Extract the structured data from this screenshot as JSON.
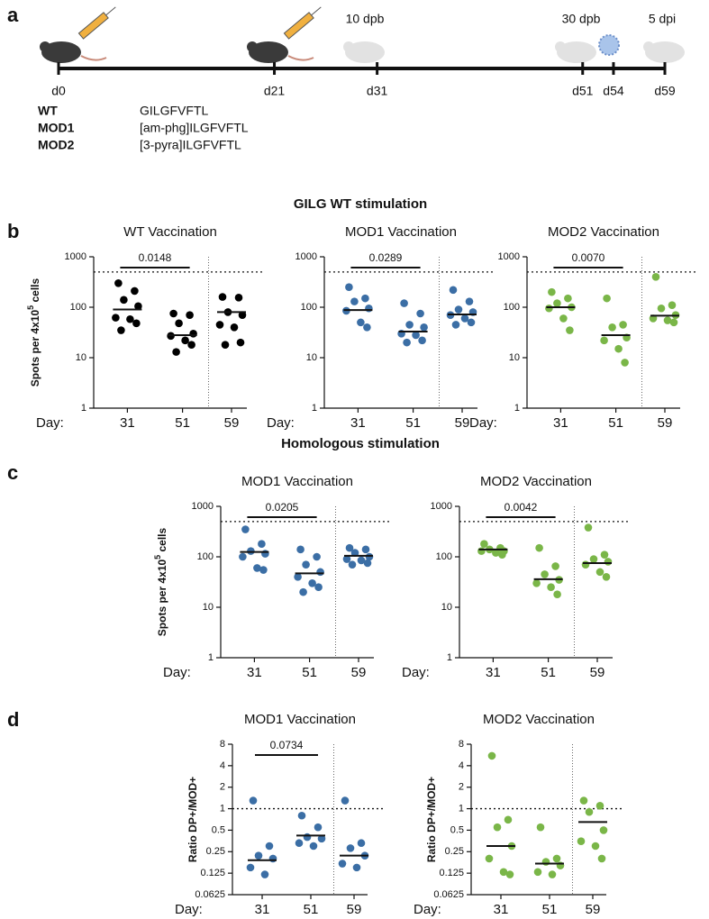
{
  "panel_labels": [
    "a",
    "b",
    "c",
    "d"
  ],
  "timeline": {
    "ticks": [
      {
        "value": 0,
        "label": "d0"
      },
      {
        "value": 21,
        "label": "d21"
      },
      {
        "value": 31,
        "label": "d31"
      },
      {
        "value": 51,
        "label": "d51"
      },
      {
        "value": 54,
        "label": "d54"
      },
      {
        "value": 59,
        "label": "d59"
      }
    ],
    "annotations": [
      "10 dpb",
      "30 dpb",
      "5 dpi"
    ]
  },
  "peptides": [
    {
      "name": "WT",
      "sequence": "GILGFVFTL"
    },
    {
      "name": "MOD1",
      "sequence": "[am-phg]ILGFVFTL"
    },
    {
      "name": "MOD2",
      "sequence": "[3-pyra]ILGFVFTL"
    }
  ],
  "section_titles": [
    "GILG WT stimulation",
    "Homologous stimulation"
  ],
  "chart_data": [
    {
      "type": "strip",
      "title": "WT Vaccination",
      "ylabel": {
        "pre": "Spots per 4x10",
        "sup": "5",
        "post": " cells"
      },
      "xlabel": "Day:",
      "categories": [
        "31",
        "51",
        "59"
      ],
      "color": "#000000",
      "values": [
        [
          300,
          210,
          140,
          105,
          62,
          58,
          48,
          35
        ],
        [
          75,
          70,
          48,
          30,
          27,
          22,
          18,
          13
        ],
        [
          160,
          155,
          80,
          70,
          45,
          40,
          20,
          18
        ]
      ],
      "medians": [
        90,
        28,
        80
      ],
      "threshold": 500,
      "p_value": 0.0148,
      "ylim": [
        1,
        1000
      ],
      "yticks": [
        1,
        10,
        100,
        1000
      ],
      "log_base": 10
    },
    {
      "type": "strip",
      "title": "MOD1 Vaccination",
      "xlabel": "Day:",
      "categories": [
        "31",
        "51",
        "59"
      ],
      "color": "#3b6ea5",
      "values": [
        [
          250,
          150,
          130,
          95,
          85,
          50,
          40
        ],
        [
          120,
          75,
          45,
          40,
          30,
          28,
          22,
          20
        ],
        [
          220,
          130,
          90,
          80,
          70,
          60,
          50,
          45
        ]
      ],
      "medians": [
        88,
        33,
        72
      ],
      "threshold": 500,
      "p_value": 0.0289,
      "ylim": [
        1,
        1000
      ],
      "yticks": [
        1,
        10,
        100,
        1000
      ],
      "log_base": 10
    },
    {
      "type": "strip",
      "title": "MOD2 Vaccination",
      "xlabel": "Day:",
      "categories": [
        "31",
        "51",
        "59"
      ],
      "color": "#7ab648",
      "values": [
        [
          200,
          150,
          120,
          100,
          95,
          60,
          35
        ],
        [
          150,
          45,
          40,
          25,
          22,
          15,
          8
        ],
        [
          400,
          110,
          95,
          70,
          60,
          55,
          50
        ]
      ],
      "medians": [
        100,
        28,
        68
      ],
      "threshold": 500,
      "p_value": {
        "value": 0.007,
        "label": "0.0070"
      },
      "ylim": [
        1,
        1000
      ],
      "yticks": [
        1,
        10,
        100,
        1000
      ],
      "log_base": 10
    },
    {
      "type": "strip",
      "title": "MOD1 Vaccination",
      "ylabel": {
        "pre": "Spots per 4x10",
        "sup": "5",
        "post": " cells"
      },
      "xlabel": "Day:",
      "categories": [
        "31",
        "51",
        "59"
      ],
      "color": "#3b6ea5",
      "values": [
        [
          350,
          180,
          130,
          115,
          100,
          60,
          55
        ],
        [
          140,
          100,
          70,
          50,
          40,
          30,
          25,
          20
        ],
        [
          150,
          140,
          120,
          100,
          90,
          85,
          75,
          70
        ]
      ],
      "medians": [
        125,
        47,
        105
      ],
      "threshold": 500,
      "p_value": 0.0205,
      "ylim": [
        1,
        1000
      ],
      "yticks": [
        1,
        10,
        100,
        1000
      ],
      "log_base": 10
    },
    {
      "type": "strip",
      "title": "MOD2 Vaccination",
      "xlabel": "Day:",
      "categories": [
        "31",
        "51",
        "59"
      ],
      "color": "#7ab648",
      "values": [
        [
          180,
          150,
          140,
          130,
          130,
          120,
          110
        ],
        [
          150,
          65,
          45,
          35,
          30,
          25,
          18
        ],
        [
          380,
          110,
          90,
          80,
          70,
          50,
          40
        ]
      ],
      "medians": [
        140,
        36,
        75
      ],
      "threshold": 500,
      "p_value": 0.0042,
      "ylim": [
        1,
        1000
      ],
      "yticks": [
        1,
        10,
        100,
        1000
      ],
      "log_base": 10
    },
    {
      "type": "strip",
      "title": "MOD1 Vaccination",
      "ylabel": {
        "pre": "Ratio DP+/MOD+"
      },
      "xlabel": "Day:",
      "categories": [
        "31",
        "51",
        "59"
      ],
      "color": "#3b6ea5",
      "values": [
        [
          1.3,
          0.3,
          0.22,
          0.2,
          0.15,
          0.12
        ],
        [
          0.8,
          0.55,
          0.4,
          0.38,
          0.33,
          0.3
        ],
        [
          1.3,
          0.33,
          0.28,
          0.22,
          0.17,
          0.15
        ]
      ],
      "medians": [
        0.19,
        0.42,
        0.22
      ],
      "threshold": 1,
      "p_value": 0.0734,
      "ylim": [
        0.0625,
        8
      ],
      "yticks": [
        0.0625,
        0.125,
        0.25,
        0.5,
        1,
        2,
        4,
        8
      ],
      "log_base": 2
    },
    {
      "type": "strip",
      "title": "MOD2 Vaccination",
      "ylabel": {
        "pre": "Ratio DP+/MOD+"
      },
      "xlabel": "Day:",
      "categories": [
        "31",
        "51",
        "59"
      ],
      "color": "#7ab648",
      "values": [
        [
          5.5,
          0.7,
          0.55,
          0.3,
          0.2,
          0.13,
          0.12
        ],
        [
          0.55,
          0.2,
          0.18,
          0.16,
          0.13,
          0.12
        ],
        [
          1.3,
          1.1,
          0.9,
          0.5,
          0.35,
          0.3,
          0.2
        ]
      ],
      "medians": [
        0.3,
        0.17,
        0.65
      ],
      "threshold": 1,
      "ylim": [
        0.0625,
        8
      ],
      "yticks": [
        0.0625,
        0.125,
        0.25,
        0.5,
        1,
        2,
        4,
        8
      ],
      "log_base": 2
    }
  ]
}
